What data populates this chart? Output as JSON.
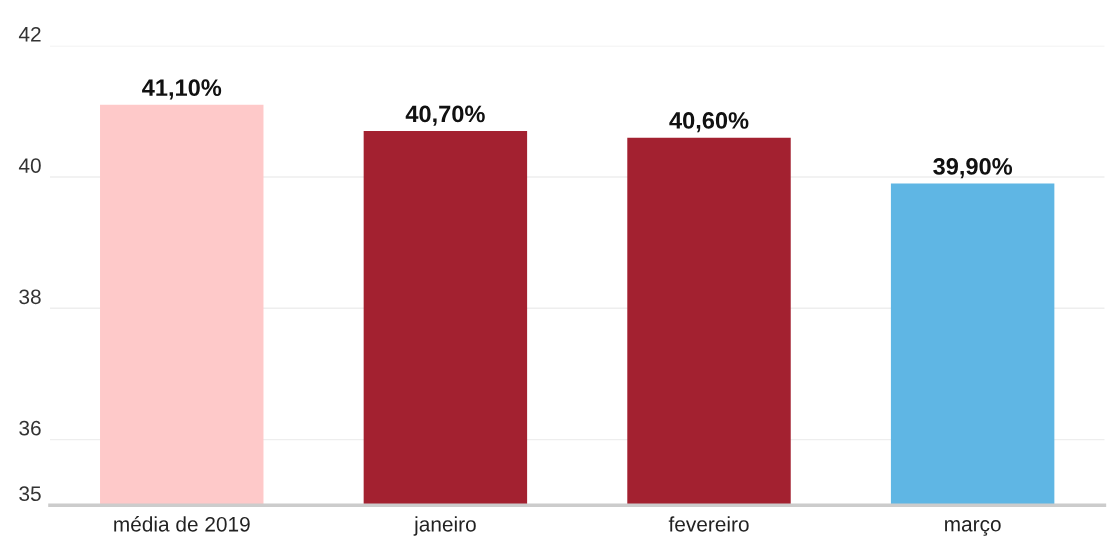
{
  "chart_data": {
    "type": "bar",
    "categories": [
      "média de 2019",
      "janeiro",
      "fevereiro",
      "março"
    ],
    "values": [
      41.1,
      40.7,
      40.6,
      39.9
    ],
    "colors": [
      "#fec9c9",
      "#a32130",
      "#a32130",
      "#5fb6e4"
    ],
    "value_labels": [
      "41,10%",
      "40,70%",
      "40,60%",
      "39,90%"
    ],
    "ylim": [
      35,
      42
    ],
    "yticks": [
      35,
      36,
      38,
      40,
      42
    ],
    "grid": "y"
  }
}
